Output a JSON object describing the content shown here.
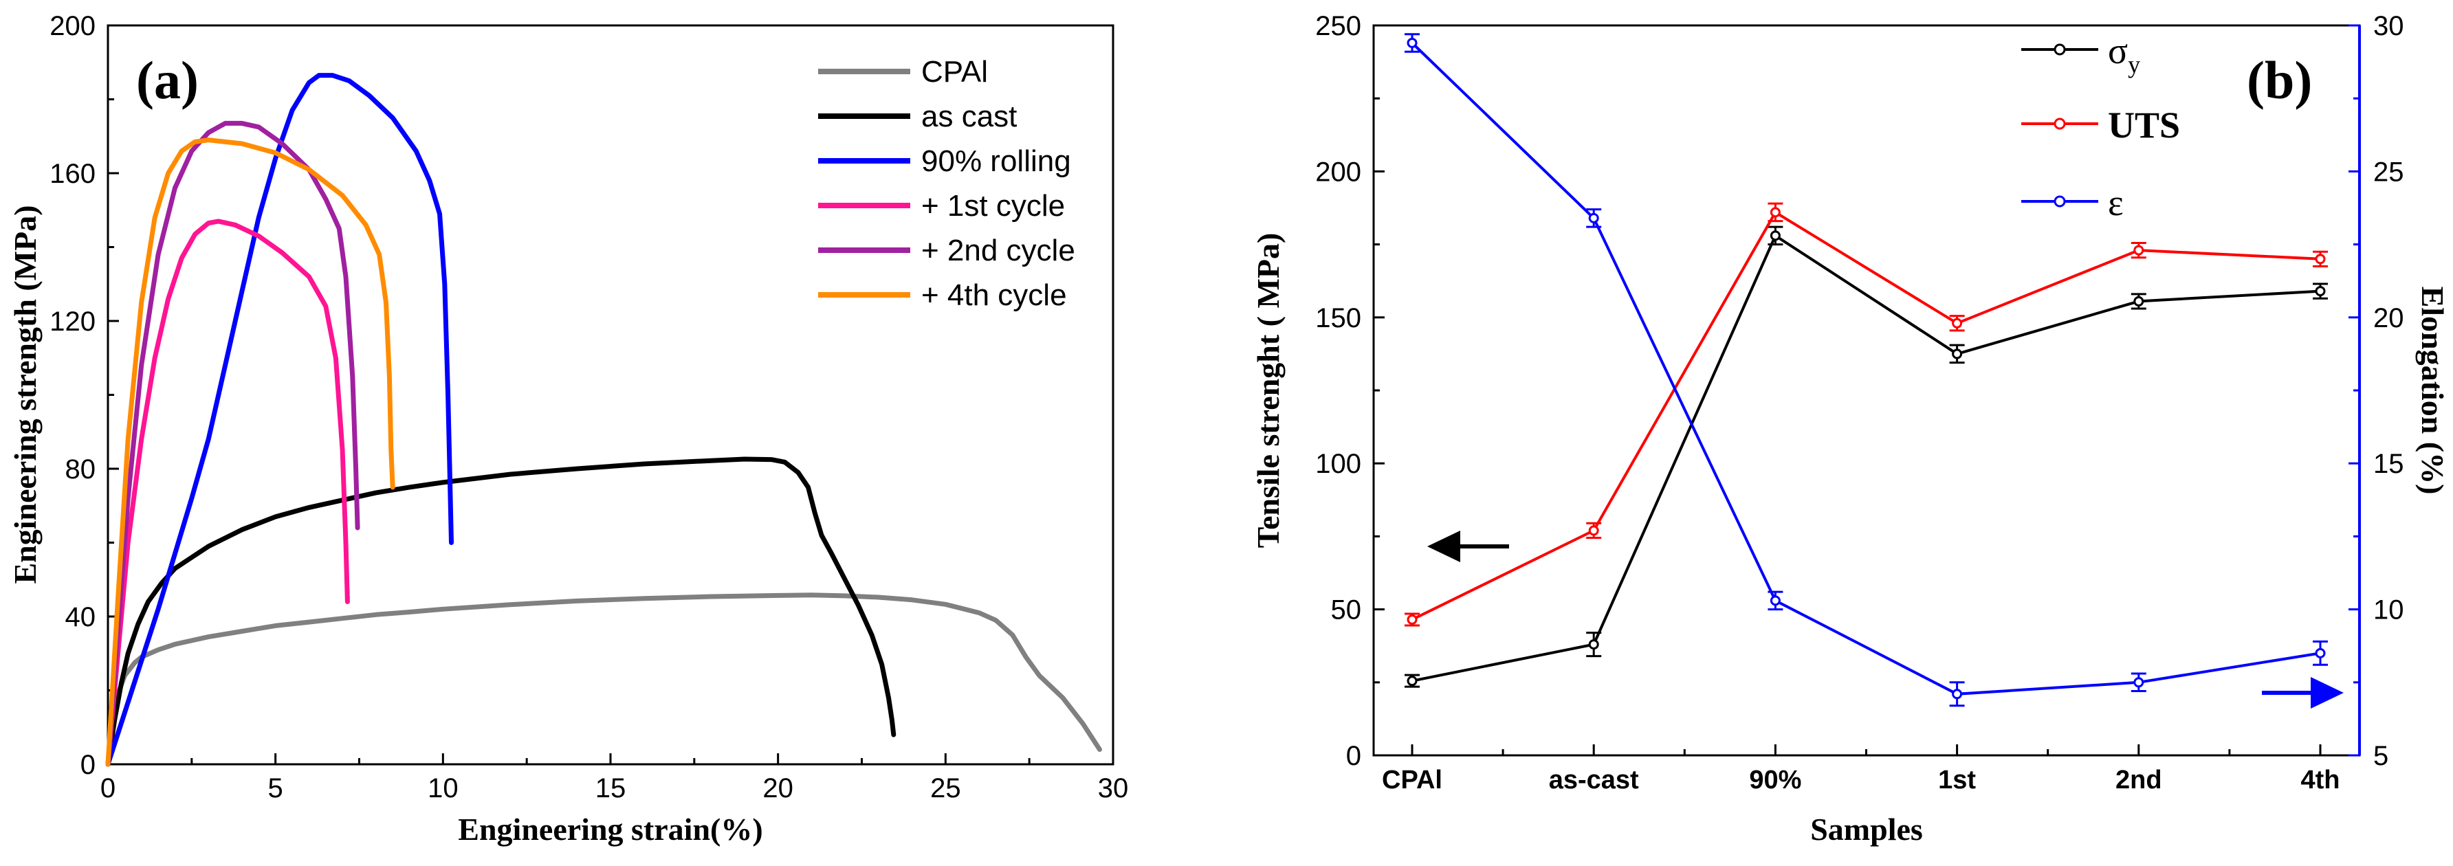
{
  "chart_data": [
    {
      "type": "line",
      "panel_label": "(a)",
      "xlabel": "Engineering strain(%)",
      "ylabel": "Engineering strength (MPa)",
      "xlim": [
        0,
        30
      ],
      "ylim": [
        0,
        200
      ],
      "xticks": [
        0,
        5,
        10,
        15,
        20,
        25,
        30
      ],
      "yticks": [
        0,
        40,
        80,
        120,
        160,
        200
      ],
      "legend_position": "top-right",
      "series": [
        {
          "name": "CPAl",
          "color": "#808080",
          "points": [
            [
              0,
              0
            ],
            [
              0.05,
              3
            ],
            [
              0.1,
              8
            ],
            [
              0.2,
              14
            ],
            [
              0.3,
              19
            ],
            [
              0.5,
              24
            ],
            [
              0.8,
              27.5
            ],
            [
              1,
              29
            ],
            [
              1.5,
              31
            ],
            [
              2,
              32.5
            ],
            [
              3,
              34.5
            ],
            [
              4,
              36
            ],
            [
              5,
              37.5
            ],
            [
              6,
              38.5
            ],
            [
              7,
              39.5
            ],
            [
              8,
              40.5
            ],
            [
              9,
              41.2
            ],
            [
              10,
              42
            ],
            [
              12,
              43.2
            ],
            [
              14,
              44.2
            ],
            [
              16,
              44.9
            ],
            [
              18,
              45.4
            ],
            [
              20,
              45.7
            ],
            [
              21,
              45.8
            ],
            [
              22,
              45.6
            ],
            [
              23,
              45.2
            ],
            [
              24,
              44.5
            ],
            [
              25,
              43.3
            ],
            [
              26,
              41
            ],
            [
              26.5,
              39
            ],
            [
              27,
              35
            ],
            [
              27.4,
              29
            ],
            [
              27.8,
              24
            ],
            [
              28.5,
              18
            ],
            [
              29.1,
              11
            ],
            [
              29.6,
              4
            ]
          ]
        },
        {
          "name": "as cast",
          "color": "#000000",
          "points": [
            [
              0,
              0
            ],
            [
              0.2,
              12
            ],
            [
              0.4,
              22
            ],
            [
              0.6,
              30
            ],
            [
              0.9,
              38
            ],
            [
              1.2,
              44
            ],
            [
              1.6,
              49
            ],
            [
              2,
              53
            ],
            [
              2.5,
              56
            ],
            [
              3,
              59
            ],
            [
              4,
              63.5
            ],
            [
              5,
              67
            ],
            [
              6,
              69.5
            ],
            [
              7,
              71.5
            ],
            [
              8,
              73.5
            ],
            [
              9,
              75
            ],
            [
              10,
              76.3
            ],
            [
              12,
              78.5
            ],
            [
              14,
              80
            ],
            [
              16,
              81.3
            ],
            [
              18,
              82.2
            ],
            [
              19,
              82.6
            ],
            [
              19.8,
              82.5
            ],
            [
              20.2,
              81.8
            ],
            [
              20.6,
              79
            ],
            [
              20.9,
              75
            ],
            [
              21.1,
              68
            ],
            [
              21.3,
              62
            ],
            [
              21.6,
              57
            ],
            [
              22,
              50
            ],
            [
              22.4,
              43
            ],
            [
              22.8,
              35
            ],
            [
              23.1,
              27
            ],
            [
              23.3,
              18
            ],
            [
              23.4,
              12
            ],
            [
              23.45,
              8
            ]
          ]
        },
        {
          "name": "90% rolling",
          "color": "#0000ff",
          "points": [
            [
              0,
              0
            ],
            [
              0.5,
              14
            ],
            [
              1,
              28
            ],
            [
              1.5,
              42
            ],
            [
              2,
              57
            ],
            [
              2.5,
              72
            ],
            [
              3,
              88
            ],
            [
              3.5,
              108
            ],
            [
              4,
              128
            ],
            [
              4.5,
              148
            ],
            [
              5,
              164
            ],
            [
              5.5,
              177
            ],
            [
              6,
              184.5
            ],
            [
              6.3,
              186.5
            ],
            [
              6.7,
              186.5
            ],
            [
              7.2,
              185
            ],
            [
              7.8,
              181
            ],
            [
              8.5,
              175
            ],
            [
              9.2,
              166
            ],
            [
              9.6,
              158
            ],
            [
              9.9,
              149
            ],
            [
              10.05,
              130
            ],
            [
              10.15,
              100
            ],
            [
              10.2,
              80
            ],
            [
              10.25,
              60
            ]
          ]
        },
        {
          "name": "+ 1st cycle",
          "color": "#ff1493",
          "points": [
            [
              0,
              0
            ],
            [
              0.3,
              30
            ],
            [
              0.6,
              60
            ],
            [
              1,
              88
            ],
            [
              1.4,
              110
            ],
            [
              1.8,
              126
            ],
            [
              2.2,
              137
            ],
            [
              2.6,
              143.5
            ],
            [
              3,
              146.5
            ],
            [
              3.3,
              147
            ],
            [
              3.8,
              146
            ],
            [
              4.5,
              143
            ],
            [
              5.2,
              138.5
            ],
            [
              6,
              132
            ],
            [
              6.5,
              124
            ],
            [
              6.8,
              110
            ],
            [
              7,
              85
            ],
            [
              7.1,
              60
            ],
            [
              7.15,
              44
            ]
          ]
        },
        {
          "name": "+ 2nd cycle",
          "color": "#a020a0",
          "points": [
            [
              0,
              0
            ],
            [
              0.3,
              36
            ],
            [
              0.6,
              72
            ],
            [
              1,
              108
            ],
            [
              1.5,
              138
            ],
            [
              2,
              156
            ],
            [
              2.5,
              166
            ],
            [
              3,
              171
            ],
            [
              3.5,
              173.5
            ],
            [
              4,
              173.5
            ],
            [
              4.5,
              172.5
            ],
            [
              5.2,
              168
            ],
            [
              6,
              161
            ],
            [
              6.5,
              153
            ],
            [
              6.9,
              145
            ],
            [
              7.1,
              132
            ],
            [
              7.3,
              105
            ],
            [
              7.4,
              80
            ],
            [
              7.45,
              64
            ]
          ]
        },
        {
          "name": "+ 4th cycle",
          "color": "#ff8c00",
          "points": [
            [
              0,
              0
            ],
            [
              0.3,
              45
            ],
            [
              0.6,
              88
            ],
            [
              1,
              125
            ],
            [
              1.4,
              148
            ],
            [
              1.8,
              160
            ],
            [
              2.2,
              166
            ],
            [
              2.6,
              168.5
            ],
            [
              3,
              169
            ],
            [
              4,
              168
            ],
            [
              5,
              165.5
            ],
            [
              6,
              161
            ],
            [
              7,
              154
            ],
            [
              7.7,
              146
            ],
            [
              8.1,
              138
            ],
            [
              8.3,
              125
            ],
            [
              8.4,
              105
            ],
            [
              8.45,
              85
            ],
            [
              8.5,
              75
            ]
          ]
        }
      ]
    },
    {
      "type": "line",
      "panel_label": "(b)",
      "xlabel": "Samples",
      "ylabel_left": "Tensile strenght ( MPa)",
      "ylabel_right": "Elongation (%)",
      "categories": [
        "CPAl",
        "as-cast",
        "90%",
        "1st",
        "2nd",
        "4th"
      ],
      "ylim_left": [
        0,
        250
      ],
      "ylim_right": [
        5,
        30
      ],
      "yticks_left": [
        0,
        50,
        100,
        150,
        200,
        250
      ],
      "yticks_right": [
        5,
        10,
        15,
        20,
        25,
        30
      ],
      "legend_position": "top-right",
      "series": [
        {
          "name": "σ",
          "subscript": "y",
          "axis": "left",
          "color": "#000000",
          "values": [
            25.5,
            38,
            178,
            137.5,
            155.5,
            159
          ],
          "errors": [
            2,
            4,
            3,
            3,
            2.5,
            2.5
          ]
        },
        {
          "name": "UTS",
          "axis": "left",
          "color": "#ff0000",
          "values": [
            46.5,
            77,
            186,
            148,
            173,
            170
          ],
          "errors": [
            2,
            2.5,
            3,
            2.5,
            2.5,
            2.5
          ]
        },
        {
          "name": "ε",
          "axis": "right",
          "color": "#0000ff",
          "values": [
            29.4,
            23.4,
            10.3,
            7.1,
            7.5,
            8.5
          ],
          "errors": [
            0.3,
            0.3,
            0.3,
            0.4,
            0.3,
            0.4
          ]
        }
      ],
      "arrows": [
        {
          "direction": "left",
          "color": "#000000",
          "meaning": "left axis"
        },
        {
          "direction": "right",
          "color": "#0000ff",
          "meaning": "right axis"
        }
      ]
    }
  ]
}
